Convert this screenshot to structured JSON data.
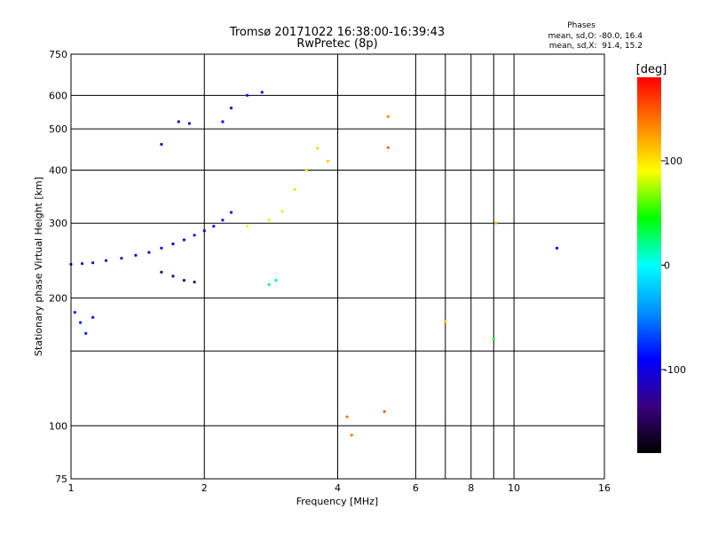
{
  "chart_data": {
    "type": "scatter",
    "title": "Tromsø 20171022 16:38:00-16:39:43",
    "subtitle": "RwPretec (8p)",
    "xlabel": "Frequency [MHz]",
    "ylabel": "Stationary phase Virtual Height [km]",
    "x_scale": "log",
    "y_scale": "log",
    "xlim": [
      1,
      16
    ],
    "ylim": [
      75,
      750
    ],
    "x_ticks": [
      1,
      2,
      4,
      6,
      8,
      10,
      16
    ],
    "x_ticks_minor": [
      7,
      9
    ],
    "y_ticks": [
      75,
      100,
      200,
      300,
      400,
      500,
      600,
      750
    ],
    "y_ticks_minor": [
      150
    ],
    "grid": true,
    "stats_title": "Phases",
    "stats_lines": [
      "mean, sd,O: -80.0, 16.4",
      "mean, sd,X:  91.4, 15.2"
    ],
    "colorbar": {
      "label": "[deg]",
      "min": -180,
      "max": 180,
      "ticks": [
        100,
        0,
        -100
      ],
      "colors": [
        "#000000",
        "#3a0080",
        "#0000ff",
        "#0090ff",
        "#00ffff",
        "#00ff00",
        "#ffff00",
        "#ff8000",
        "#ff0000"
      ]
    },
    "series": [
      {
        "values": [
          [
            1.0,
            240,
            -120
          ],
          [
            1.06,
            241,
            -118
          ],
          [
            1.12,
            242,
            -115
          ],
          [
            1.2,
            245,
            -110
          ],
          [
            1.3,
            248,
            -108
          ],
          [
            1.4,
            252,
            -105
          ],
          [
            1.5,
            256,
            -102
          ],
          [
            1.6,
            262,
            -100
          ],
          [
            1.7,
            268,
            -98
          ],
          [
            1.8,
            274,
            -96
          ],
          [
            1.9,
            281,
            -95
          ],
          [
            2.0,
            288,
            -93
          ],
          [
            2.1,
            295,
            -92
          ],
          [
            2.2,
            305,
            -90
          ],
          [
            2.3,
            318,
            -88
          ]
        ]
      },
      {
        "values": [
          [
            1.6,
            460,
            -115
          ],
          [
            1.75,
            520,
            -110
          ],
          [
            1.85,
            515,
            -105
          ],
          [
            2.2,
            520,
            -92
          ],
          [
            2.3,
            560,
            -90
          ],
          [
            2.5,
            600,
            -88
          ],
          [
            2.7,
            610,
            -87
          ]
        ]
      },
      {
        "values": [
          [
            1.02,
            185,
            -78
          ],
          [
            1.05,
            175,
            -82
          ],
          [
            1.08,
            165,
            -88
          ],
          [
            1.12,
            180,
            -92
          ]
        ]
      },
      {
        "values": [
          [
            1.6,
            230,
            -140
          ],
          [
            1.7,
            225,
            -138
          ],
          [
            1.8,
            220,
            -142
          ],
          [
            1.9,
            218,
            -136
          ]
        ]
      },
      {
        "values": [
          [
            2.5,
            295,
            95
          ],
          [
            2.8,
            305,
            98
          ],
          [
            3.0,
            320,
            100
          ],
          [
            3.2,
            360,
            102
          ],
          [
            3.4,
            400,
            104
          ],
          [
            3.6,
            450,
            106
          ],
          [
            3.8,
            420,
            108
          ]
        ]
      },
      {
        "values": [
          [
            2.8,
            215,
            20
          ],
          [
            2.9,
            220,
            15
          ]
        ]
      },
      {
        "values": [
          [
            4.2,
            105,
            140
          ],
          [
            4.3,
            95,
            135
          ],
          [
            5.1,
            108,
            150
          ],
          [
            5.2,
            535,
            130
          ],
          [
            5.2,
            452,
            140
          ],
          [
            7.0,
            176,
            110
          ],
          [
            9.0,
            160,
            50
          ],
          [
            9.1,
            300,
            120
          ],
          [
            12.5,
            262,
            -90
          ]
        ]
      }
    ]
  }
}
